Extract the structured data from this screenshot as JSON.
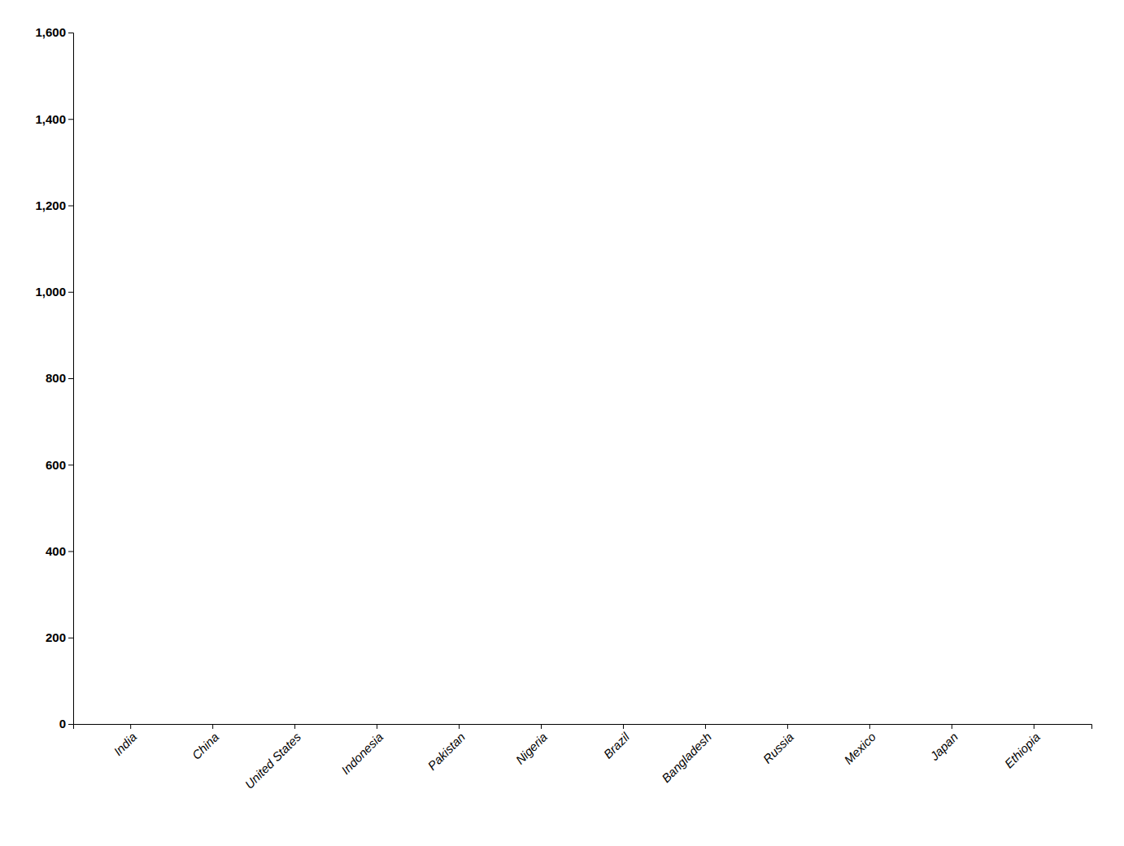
{
  "chart_data": {
    "type": "bar",
    "categories": [
      "India",
      "China",
      "United States",
      "Indonesia",
      "Pakistan",
      "Nigeria",
      "Brazil",
      "Bangladesh",
      "Russia",
      "Mexico",
      "Japan",
      "Ethiopia"
    ],
    "values": [
      0,
      0,
      0,
      0,
      0,
      0,
      0,
      0,
      0,
      0,
      0,
      0
    ],
    "color": "#000000",
    "ylim": [
      0,
      1600
    ],
    "yticks": [
      0,
      200,
      400,
      600,
      800,
      {
        "value": 1000,
        "label": "1,000"
      },
      {
        "value": 1200,
        "label": "1,200"
      },
      {
        "value": 1400,
        "label": "1,400"
      },
      {
        "value": 1600,
        "label": "1,600"
      }
    ],
    "grid": false
  }
}
